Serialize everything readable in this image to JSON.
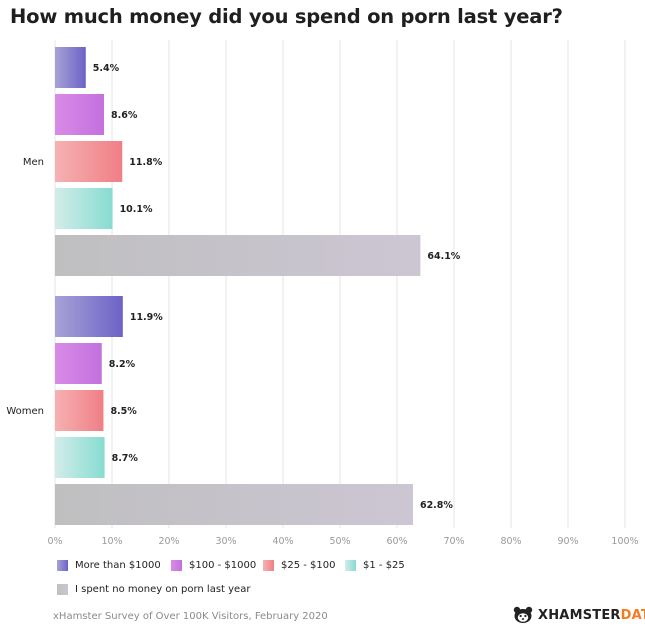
{
  "title": "How much money did you spend on porn last year?",
  "source": "xHamster Survey of Over 100K Visitors, February 2020",
  "brand": {
    "prefix": "XHAMSTER",
    "suffix": "DATA",
    "logo_icon": "hamster-icon"
  },
  "colors": {
    "accent": "#f47b20",
    "grid": "#e6e6e6",
    "text": "#222222"
  },
  "chart_data": {
    "type": "bar",
    "orientation": "horizontal",
    "title": "How much money did you spend on porn last year?",
    "xlim": [
      0,
      100
    ],
    "x_ticks": [
      "0%",
      "10%",
      "20%",
      "30%",
      "40%",
      "50%",
      "60%",
      "70%",
      "80%",
      "90%",
      "100%"
    ],
    "grid": true,
    "legend_placement": "bottom",
    "series_colors": [
      [
        "#a7a3d6",
        "#6c62c6"
      ],
      [
        "#d98be6",
        "#c371de"
      ],
      [
        "#f6b1b3",
        "#ef7f85"
      ],
      [
        "#d3ece9",
        "#86dcd1"
      ],
      [
        "#bfbfc0",
        "#ccc6d3"
      ]
    ],
    "groups": [
      {
        "label": "Men",
        "bars": [
          {
            "series": "More than $1000",
            "value": 5.4,
            "label": "5.4%"
          },
          {
            "series": "$100 - $1000",
            "value": 8.6,
            "label": "8.6%"
          },
          {
            "series": "$25 - $100",
            "value": 11.8,
            "label": "11.8%"
          },
          {
            "series": "$1 - $25",
            "value": 10.1,
            "label": "10.1%"
          },
          {
            "series": "I spent no money on porn last year",
            "value": 64.1,
            "label": "64.1%"
          }
        ]
      },
      {
        "label": "Women",
        "bars": [
          {
            "series": "More than $1000",
            "value": 11.9,
            "label": "11.9%"
          },
          {
            "series": "$100 - $1000",
            "value": 8.2,
            "label": "8.2%"
          },
          {
            "series": "$25 - $100",
            "value": 8.5,
            "label": "8.5%"
          },
          {
            "series": "$1 - $25",
            "value": 8.7,
            "label": "8.7%"
          },
          {
            "series": "I spent no money on porn last year",
            "value": 62.8,
            "label": "62.8%"
          }
        ]
      }
    ],
    "legend": [
      "More than $1000",
      "$100 - $1000",
      "$25 - $100",
      "$1 - $25",
      "I spent no money on porn last year"
    ]
  }
}
